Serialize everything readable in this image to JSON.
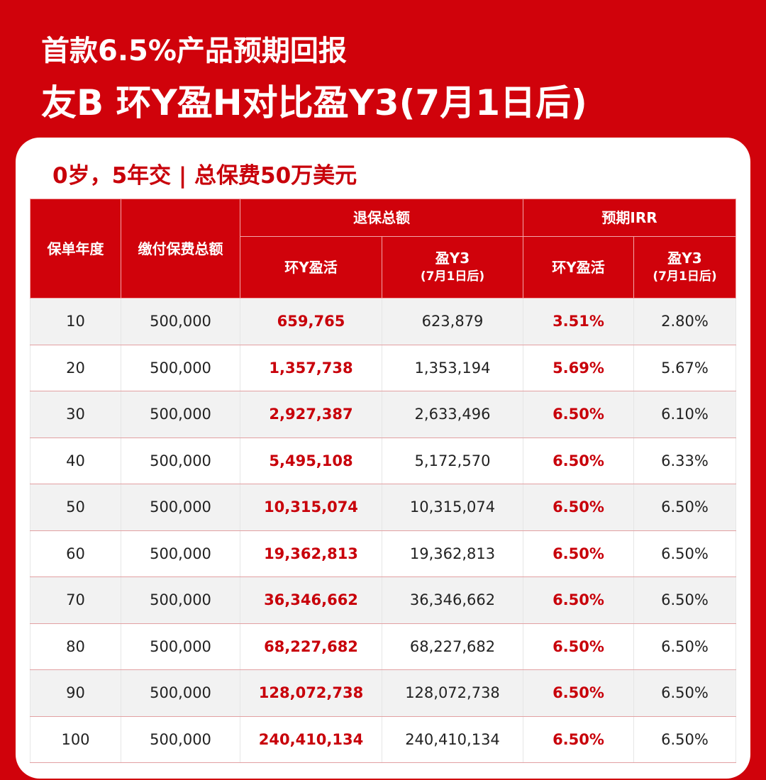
{
  "header": {
    "title_line1": "首款6.5%产品预期回报",
    "title_line2": "友B  环Y盈H对比盈Y3(7月1日后)"
  },
  "card": {
    "subtitle": "0岁，5年交 | 总保费50万美元"
  },
  "table": {
    "headers": {
      "policy_year": "保单年度",
      "premium_total": "缴付保费总额",
      "surrender_total": "退保总额",
      "irr": "预期IRR",
      "product_a": "环Y盈活",
      "product_b": "盈Y3",
      "product_b_note": "(7月1日后)"
    },
    "rows": [
      {
        "year": "10",
        "premium": "500,000",
        "sv_a": "659,765",
        "sv_b": "623,879",
        "irr_a": "3.51%",
        "irr_b": "2.80%"
      },
      {
        "year": "20",
        "premium": "500,000",
        "sv_a": "1,357,738",
        "sv_b": "1,353,194",
        "irr_a": "5.69%",
        "irr_b": "5.67%"
      },
      {
        "year": "30",
        "premium": "500,000",
        "sv_a": "2,927,387",
        "sv_b": "2,633,496",
        "irr_a": "6.50%",
        "irr_b": "6.10%"
      },
      {
        "year": "40",
        "premium": "500,000",
        "sv_a": "5,495,108",
        "sv_b": "5,172,570",
        "irr_a": "6.50%",
        "irr_b": "6.33%"
      },
      {
        "year": "50",
        "premium": "500,000",
        "sv_a": "10,315,074",
        "sv_b": "10,315,074",
        "irr_a": "6.50%",
        "irr_b": "6.50%"
      },
      {
        "year": "60",
        "premium": "500,000",
        "sv_a": "19,362,813",
        "sv_b": "19,362,813",
        "irr_a": "6.50%",
        "irr_b": "6.50%"
      },
      {
        "year": "70",
        "premium": "500,000",
        "sv_a": "36,346,662",
        "sv_b": "36,346,662",
        "irr_a": "6.50%",
        "irr_b": "6.50%"
      },
      {
        "year": "80",
        "premium": "500,000",
        "sv_a": "68,227,682",
        "sv_b": "68,227,682",
        "irr_a": "6.50%",
        "irr_b": "6.50%"
      },
      {
        "year": "90",
        "premium": "500,000",
        "sv_a": "128,072,738",
        "sv_b": "128,072,738",
        "irr_a": "6.50%",
        "irr_b": "6.50%"
      },
      {
        "year": "100",
        "premium": "500,000",
        "sv_a": "240,410,134",
        "sv_b": "240,410,134",
        "irr_a": "6.50%",
        "irr_b": "6.50%"
      }
    ]
  },
  "colors": {
    "brand_red": "#d0020b",
    "highlight_red": "#c8000a"
  }
}
